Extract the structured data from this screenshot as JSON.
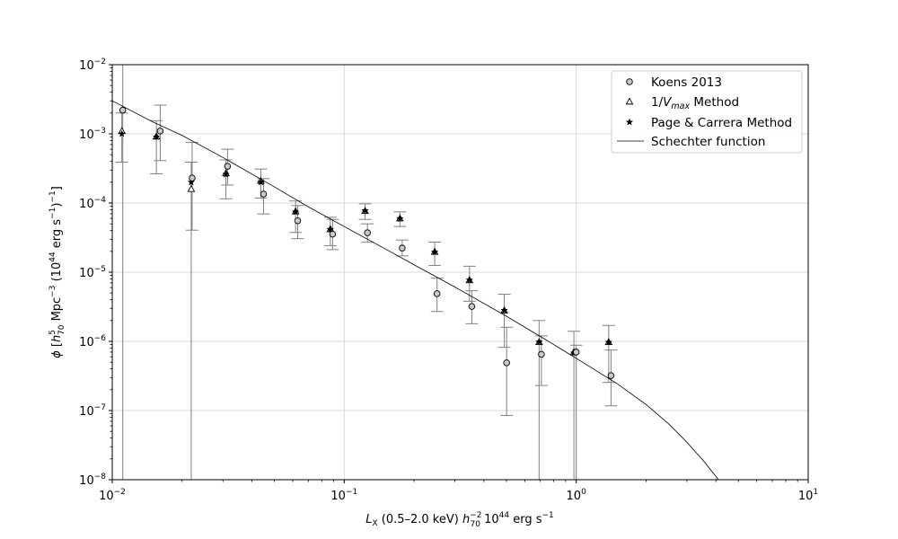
{
  "chart_data": {
    "type": "scatter",
    "xscale": "log",
    "yscale": "log",
    "xlim": [
      0.01,
      10
    ],
    "ylim": [
      1e-08,
      0.01
    ],
    "grid": true,
    "legend_position": "top-right",
    "title": "",
    "xlabel": {
      "prefix": "L",
      "prefix_sub": "X",
      "mid": " (0.5–2.0 keV) ",
      "h": "h",
      "h_sup": "−2",
      "h_sub": "70",
      "unit_a": " 10",
      "unit_a_sup": "44",
      "unit_b": " erg s",
      "unit_b_sup": "−1"
    },
    "ylabel": {
      "phi": "ϕ",
      "open": " [",
      "h": "h",
      "h_sup": "5",
      "h_sub": "70",
      "mpc": " Mpc",
      "mpc_sup": "−3",
      "paren": " (10",
      "paren_sup": "44",
      "erg": " erg s",
      "erg_sup": "−1",
      "close": ")",
      "close_sup": "−1",
      "end": "]"
    },
    "x_ticks": [
      {
        "value": 0.01,
        "base": "10",
        "exp": "−2"
      },
      {
        "value": 0.1,
        "base": "10",
        "exp": "−1"
      },
      {
        "value": 1,
        "base": "10",
        "exp": "0"
      },
      {
        "value": 10,
        "base": "10",
        "exp": "1"
      }
    ],
    "y_ticks": [
      {
        "value": 1e-08,
        "base": "10",
        "exp": "−8"
      },
      {
        "value": 1e-07,
        "base": "10",
        "exp": "−7"
      },
      {
        "value": 1e-06,
        "base": "10",
        "exp": "−6"
      },
      {
        "value": 1e-05,
        "base": "10",
        "exp": "−5"
      },
      {
        "value": 0.0001,
        "base": "10",
        "exp": "−4"
      },
      {
        "value": 0.001,
        "base": "10",
        "exp": "−3"
      },
      {
        "value": 0.01,
        "base": "10",
        "exp": "−2"
      }
    ],
    "series": [
      {
        "name": "Koens 2013",
        "marker": "circle",
        "points": [
          {
            "x": 0.0111,
            "y": 0.0022,
            "ylo": 1e-08,
            "yhi": 0.01
          },
          {
            "x": 0.0161,
            "y": 0.0011,
            "ylo": 0.00041,
            "yhi": 0.0026
          },
          {
            "x": 0.0221,
            "y": 0.00023,
            "ylo": 4.05e-05,
            "yhi": 0.00075
          },
          {
            "x": 0.0314,
            "y": 0.00034,
            "ylo": 0.000182,
            "yhi": 0.0006
          },
          {
            "x": 0.0449,
            "y": 0.000135,
            "ylo": 6.95e-05,
            "yhi": 0.000225
          },
          {
            "x": 0.063,
            "y": 5.55e-05,
            "ylo": 3.05e-05,
            "yhi": 9.2e-05
          },
          {
            "x": 0.0891,
            "y": 3.55e-05,
            "ylo": 2.12e-05,
            "yhi": 5.8e-05
          },
          {
            "x": 0.1259,
            "y": 3.72e-05,
            "ylo": 2.71e-05,
            "yhi": 5e-05
          },
          {
            "x": 0.1778,
            "y": 2.23e-05,
            "ylo": 1.72e-05,
            "yhi": 2.92e-05
          },
          {
            "x": 0.2512,
            "y": 4.9e-06,
            "ylo": 2.7e-06,
            "yhi": 8.2e-06
          },
          {
            "x": 0.3548,
            "y": 3.2e-06,
            "ylo": 1.8e-06,
            "yhi": 5.4e-06
          },
          {
            "x": 0.5012,
            "y": 4.9e-07,
            "ylo": 8.5e-08,
            "yhi": 1.6e-06
          },
          {
            "x": 0.7079,
            "y": 6.5e-07,
            "ylo": 2.3e-07,
            "yhi": 1.2e-06
          },
          {
            "x": 1.0,
            "y": 7e-07,
            "ylo": 1e-08,
            "yhi": 8.8e-07
          },
          {
            "x": 1.4125,
            "y": 3.2e-07,
            "ylo": 1.17e-07,
            "yhi": 7.5e-07
          }
        ]
      },
      {
        "name": "1/V_max Method",
        "marker": "triangle",
        "points": [
          {
            "x": 0.011,
            "y": 0.0011
          },
          {
            "x": 0.0155,
            "y": 0.00092
          },
          {
            "x": 0.0219,
            "y": 0.00016
          },
          {
            "x": 0.0309,
            "y": 0.00027
          },
          {
            "x": 0.0437,
            "y": 0.00021
          },
          {
            "x": 0.0617,
            "y": 7.6e-05
          },
          {
            "x": 0.0871,
            "y": 4.2e-05
          },
          {
            "x": 0.123,
            "y": 7.7e-05
          },
          {
            "x": 0.1738,
            "y": 6e-05
          },
          {
            "x": 0.2455,
            "y": 1.98e-05
          },
          {
            "x": 0.3467,
            "y": 7.7e-06
          },
          {
            "x": 0.4898,
            "y": 2.8e-06
          },
          {
            "x": 0.6918,
            "y": 9.8e-07
          },
          {
            "x": 0.9772,
            "y": 7e-07
          },
          {
            "x": 1.3804,
            "y": 9.8e-07
          }
        ]
      },
      {
        "name": "Page & Carrera Method",
        "marker": "star",
        "points": [
          {
            "x": 0.011,
            "y": 0.001,
            "ylo": 0.00039,
            "yhi": 0.002
          },
          {
            "x": 0.0155,
            "y": 0.0009,
            "ylo": 0.000265,
            "yhi": 0.00155
          },
          {
            "x": 0.0219,
            "y": 0.0002,
            "ylo": 1e-08,
            "yhi": 0.00039
          },
          {
            "x": 0.0309,
            "y": 0.00026,
            "ylo": 0.000115,
            "yhi": 0.00042
          },
          {
            "x": 0.0437,
            "y": 0.0002,
            "ylo": 0.000118,
            "yhi": 0.00031
          },
          {
            "x": 0.0617,
            "y": 7.4e-05,
            "ylo": 3.75e-05,
            "yhi": 0.000107
          },
          {
            "x": 0.0871,
            "y": 4.15e-05,
            "ylo": 2.42e-05,
            "yhi": 6.22e-05
          },
          {
            "x": 0.123,
            "y": 7.75e-05,
            "ylo": 5.8e-05,
            "yhi": 9.75e-05
          },
          {
            "x": 0.1738,
            "y": 5.95e-05,
            "ylo": 4.58e-05,
            "yhi": 7.45e-05
          },
          {
            "x": 0.2455,
            "y": 1.95e-05,
            "ylo": 1.25e-05,
            "yhi": 2.72e-05
          },
          {
            "x": 0.3467,
            "y": 7.7e-06,
            "ylo": 3.8e-06,
            "yhi": 1.22e-05
          },
          {
            "x": 0.4898,
            "y": 2.8e-06,
            "ylo": 8.2e-07,
            "yhi": 4.8e-06
          },
          {
            "x": 0.6918,
            "y": 9.8e-07,
            "ylo": 1e-08,
            "yhi": 2e-06
          },
          {
            "x": 0.9772,
            "y": 6.8e-07,
            "ylo": 1e-08,
            "yhi": 1.4e-06
          },
          {
            "x": 1.3804,
            "y": 9.7e-07,
            "ylo": 2.55e-07,
            "yhi": 1.7e-06
          }
        ]
      },
      {
        "name": "Schechter function",
        "type": "line",
        "x": [
          0.01,
          0.015,
          0.02,
          0.03,
          0.05,
          0.07,
          0.1,
          0.15,
          0.2,
          0.3,
          0.5,
          0.7,
          1.0,
          1.5,
          2.0,
          2.5,
          3.0,
          3.5,
          4.0,
          4.5
        ],
        "y": [
          0.003,
          0.00148,
          0.00095,
          0.000455,
          0.000171,
          8.8e-05,
          4.57e-05,
          2.18e-05,
          1.28e-05,
          6.1e-06,
          2.31e-06,
          1.18e-06,
          5.7e-07,
          2.45e-07,
          1.22e-07,
          6.45e-08,
          3.48e-08,
          1.95e-08,
          1.12e-08,
          6.5e-09
        ]
      }
    ],
    "legend": [
      {
        "marker": "circle",
        "label": "Koens 2013"
      },
      {
        "marker": "triangle",
        "label": "1/",
        "label_italic": "V",
        "label_sub": "max",
        "label_tail": " Method"
      },
      {
        "marker": "star",
        "label": "Page & Carrera Method"
      },
      {
        "marker": "line",
        "label": "Schechter function"
      }
    ]
  }
}
